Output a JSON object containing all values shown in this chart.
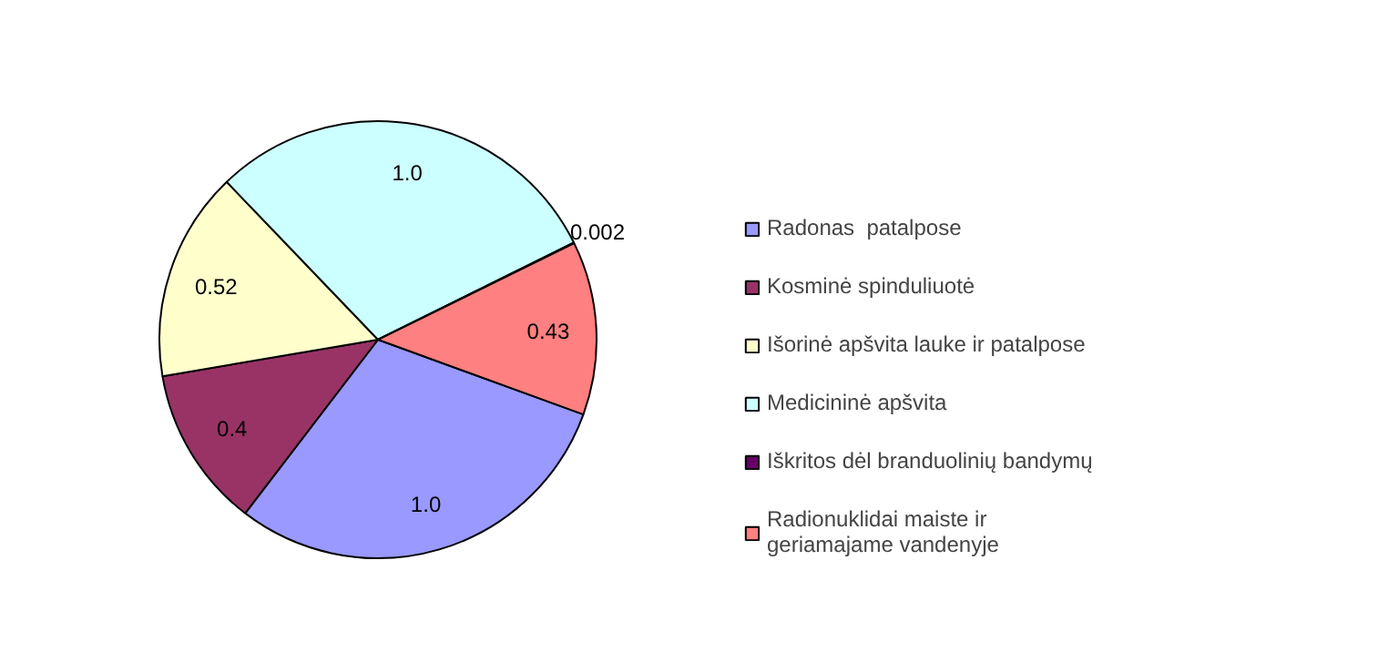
{
  "chart_data": {
    "type": "pie",
    "categories": [
      "Radonas  patalpose",
      "Kosminė spinduliuotė",
      "Išorinė apšvita lauke ir patalpose",
      "Medicininė apšvita",
      "Iškritos dėl branduolinių bandymų",
      "Radionuklidai maiste ir\ngeriamajame vandenyje"
    ],
    "values": [
      1.0,
      0.4,
      0.52,
      1.0,
      0.002,
      0.43
    ],
    "value_labels": [
      "1.0",
      "0.4",
      "0.52",
      "1.0",
      "0.002",
      "0.43"
    ],
    "colors": [
      "#9999ff",
      "#993366",
      "#ffffcc",
      "#ccffff",
      "#660066",
      "#ff8080"
    ],
    "legend": "right"
  }
}
